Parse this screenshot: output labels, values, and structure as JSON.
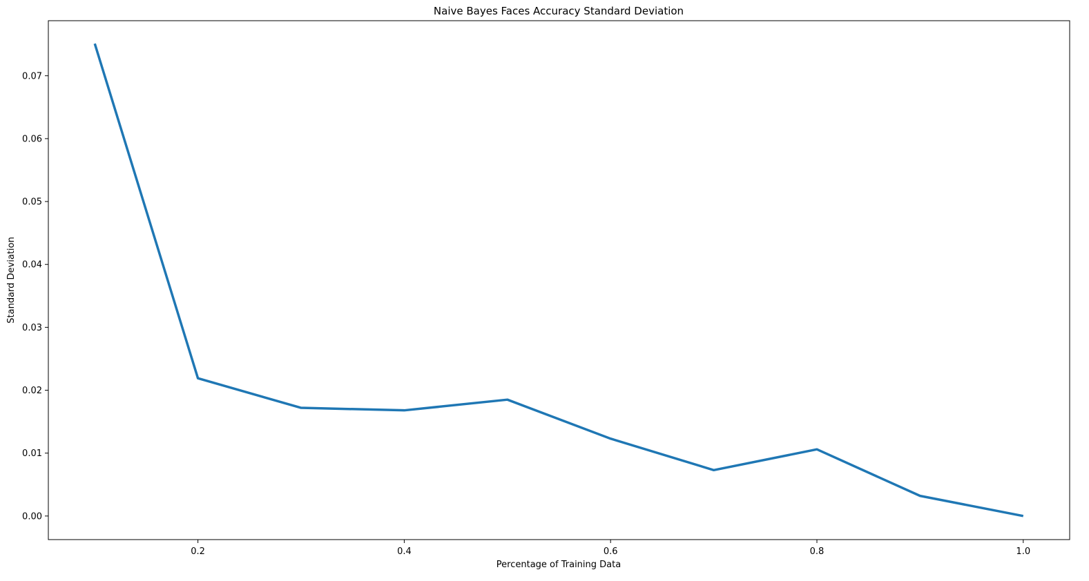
{
  "chart_data": {
    "type": "line",
    "title": "Naive Bayes Faces Accuracy Standard Deviation",
    "xlabel": "Percentage of Training Data",
    "ylabel": "Standard Deviation",
    "xlim": [
      0.055,
      1.045
    ],
    "ylim": [
      -0.00375,
      0.07875
    ],
    "xticks": [
      0.2,
      0.4,
      0.6,
      0.8,
      1.0
    ],
    "xtick_labels": [
      "0.2",
      "0.4",
      "0.6",
      "0.8",
      "1.0"
    ],
    "yticks": [
      0.0,
      0.01,
      0.02,
      0.03,
      0.04,
      0.05,
      0.06,
      0.07
    ],
    "ytick_labels": [
      "0.00",
      "0.01",
      "0.02",
      "0.03",
      "0.04",
      "0.05",
      "0.06",
      "0.07"
    ],
    "grid": false,
    "series": [
      {
        "color": "#1f77b4",
        "x": [
          0.1,
          0.2,
          0.3,
          0.4,
          0.5,
          0.6,
          0.7,
          0.8,
          0.9,
          1.0
        ],
        "y": [
          0.0751,
          0.0219,
          0.0172,
          0.0168,
          0.0185,
          0.0123,
          0.0073,
          0.0106,
          0.0032,
          0.0
        ]
      }
    ]
  }
}
